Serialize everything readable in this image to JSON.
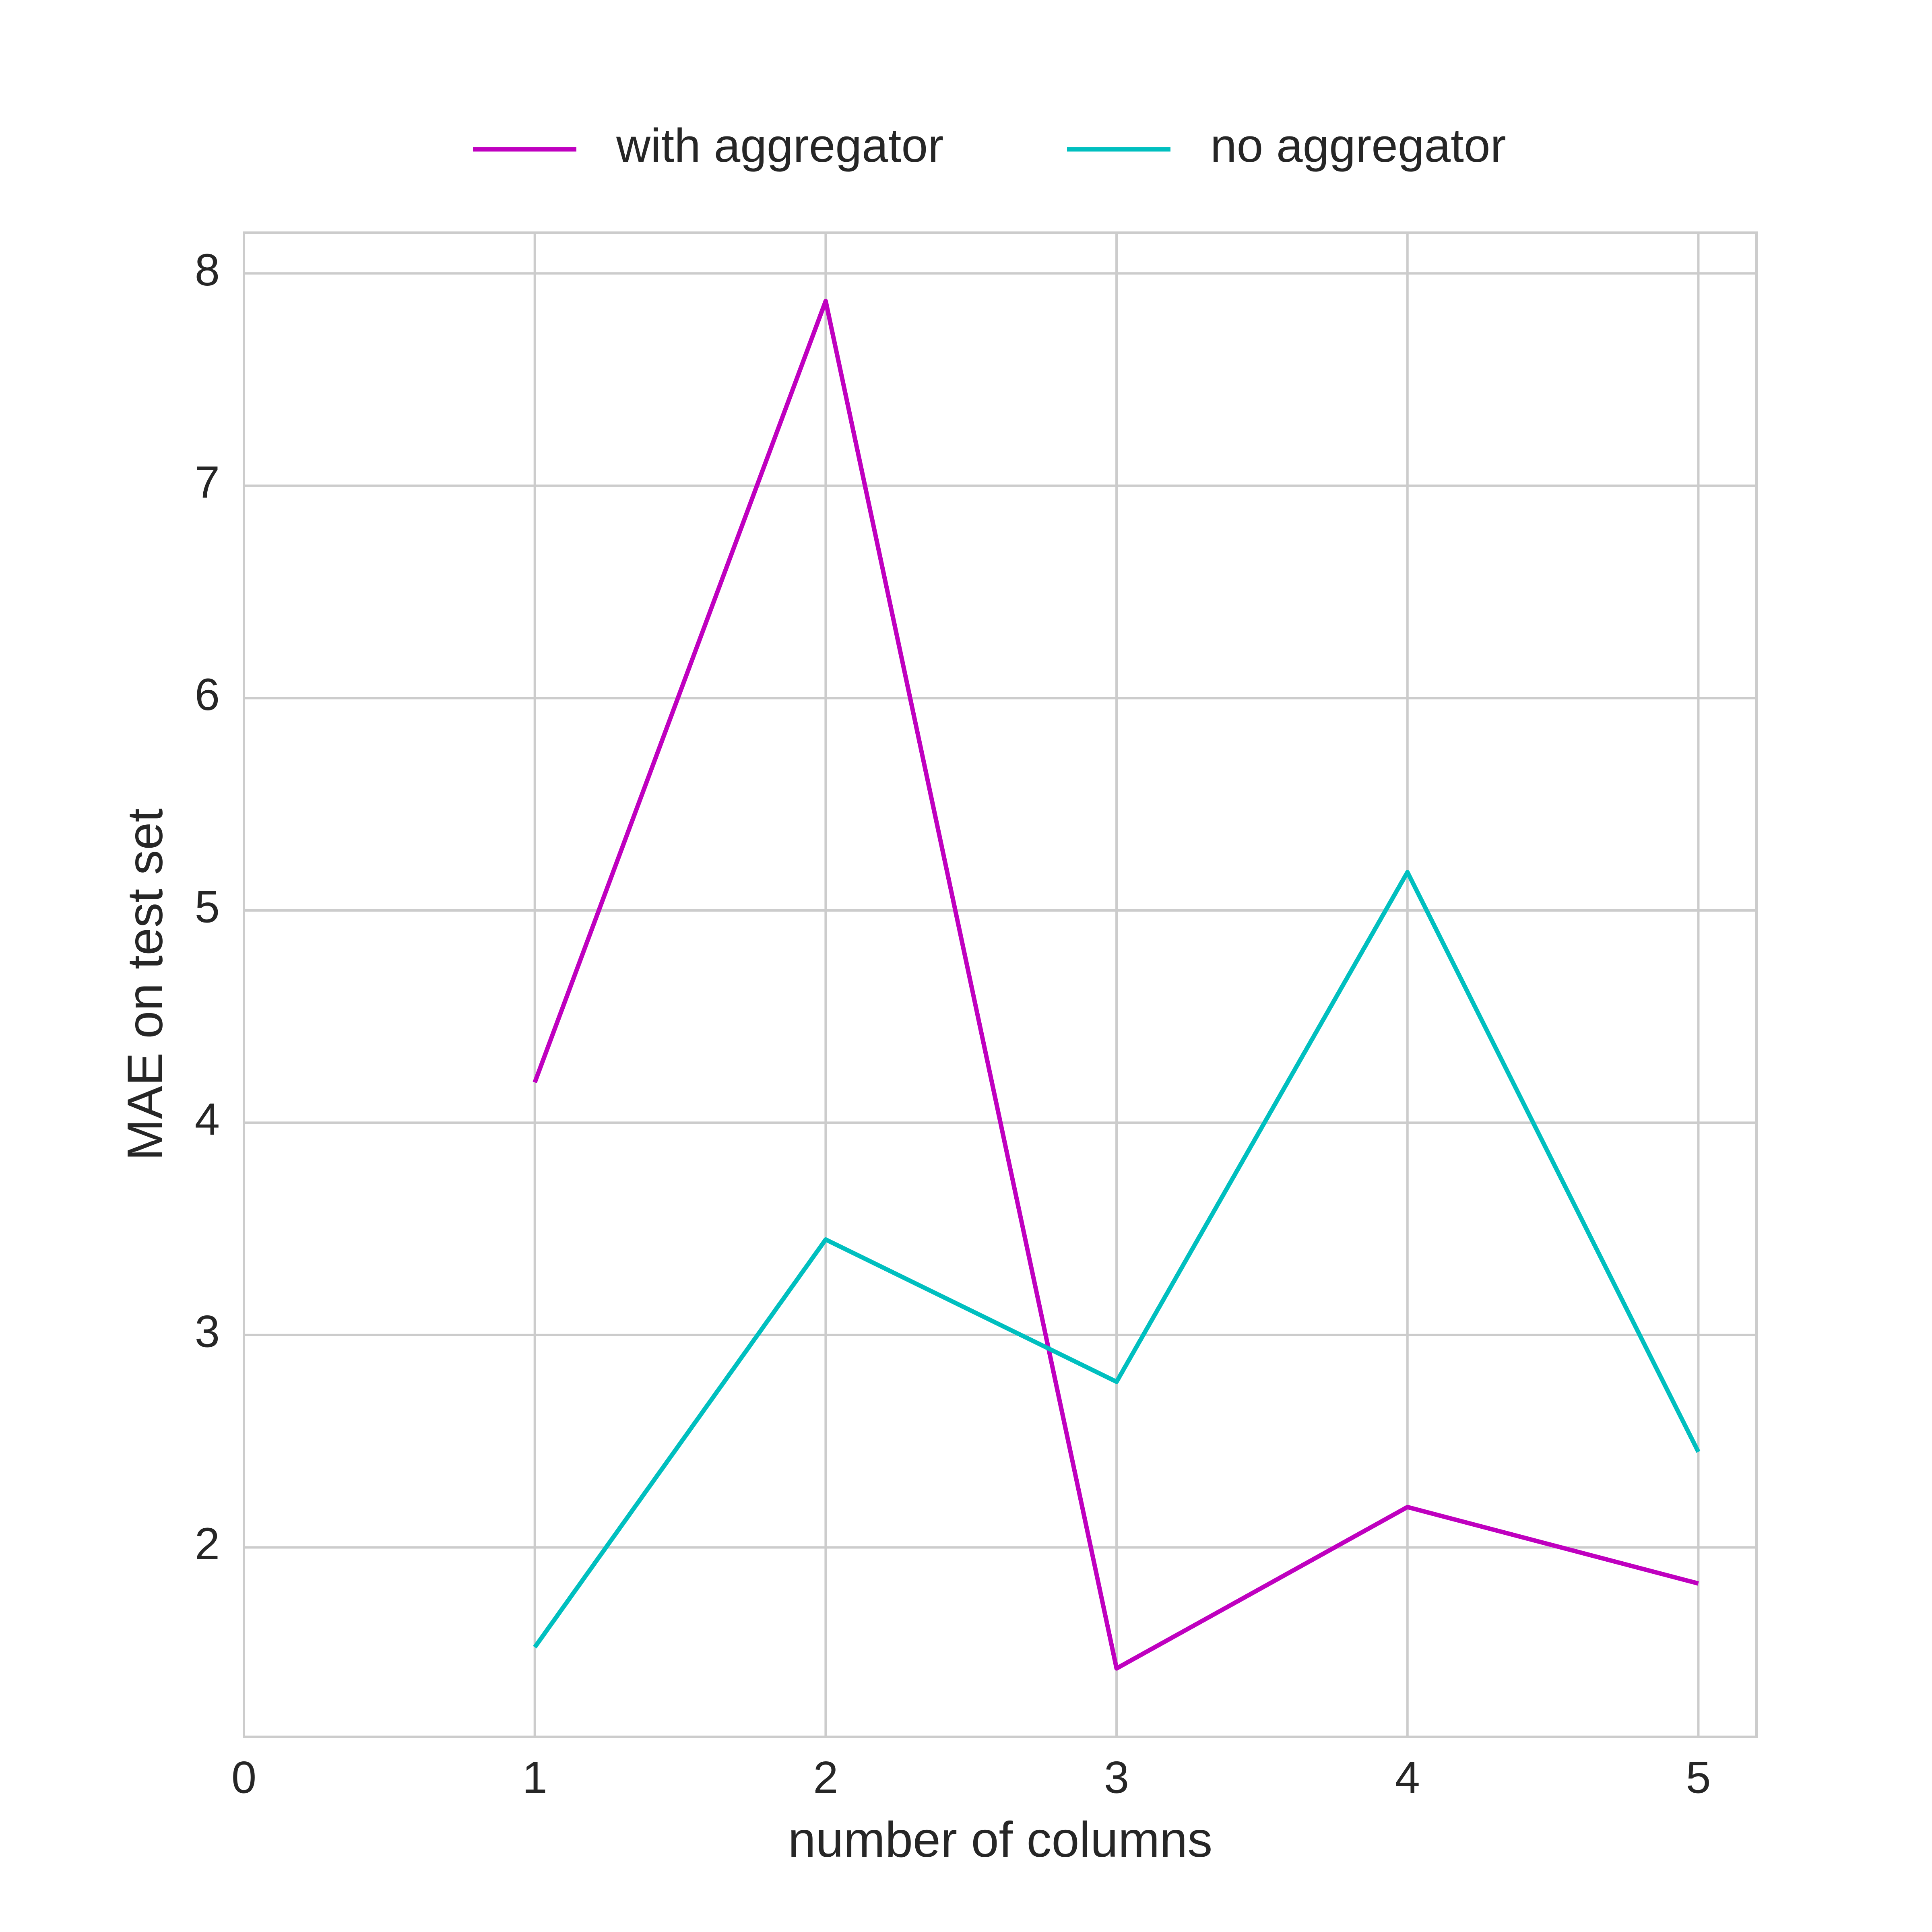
{
  "chart_data": {
    "type": "line",
    "x_label": "number of columns",
    "y_label": "MAE on test set",
    "x": [
      1,
      2,
      3,
      4,
      5
    ],
    "series": [
      {
        "name": "with aggregator",
        "color": "#bf00bf",
        "values": [
          4.19,
          7.87,
          1.43,
          2.19,
          1.83
        ]
      },
      {
        "name": "no aggregator",
        "color": "#00bfbf",
        "values": [
          1.53,
          3.45,
          2.78,
          5.18,
          2.45
        ]
      }
    ],
    "xlim": [
      0,
      5.2
    ],
    "ylim": [
      1.108,
      8.192
    ],
    "xticks": [
      0,
      1,
      2,
      3,
      4,
      5
    ],
    "yticks": [
      2,
      3,
      4,
      5,
      6,
      7,
      8
    ],
    "grid": true,
    "legend": "top"
  }
}
